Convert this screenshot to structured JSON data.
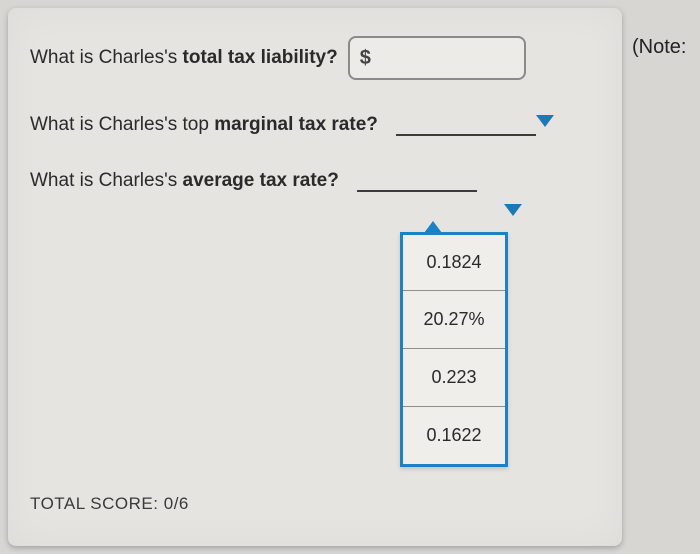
{
  "note_text": "(Note:",
  "q1": {
    "prefix": "What is Charles's ",
    "bold": "total tax liability?",
    "suffix": ""
  },
  "q2": {
    "prefix": "What is Charles's top ",
    "bold": "marginal tax rate?",
    "suffix": ""
  },
  "q3": {
    "prefix": "What is Charles's ",
    "bold": "average tax rate?",
    "suffix": ""
  },
  "input1": {
    "symbol": "$",
    "value": "",
    "placeholder": ""
  },
  "dropdown_marginal": {
    "selected": ""
  },
  "dropdown_average": {
    "selected": "",
    "options": [
      "0.1824",
      "20.27%",
      "0.223",
      "0.1622"
    ]
  },
  "score": {
    "label": "TOTAL SCORE:",
    "value": "0/6"
  },
  "colors": {
    "panel_bg": "#e6e4e1",
    "body_bg": "#d8d6d3",
    "accent_blue": "#1b82c4",
    "underline": "#3b3b39",
    "input_border": "#8a8a88"
  }
}
